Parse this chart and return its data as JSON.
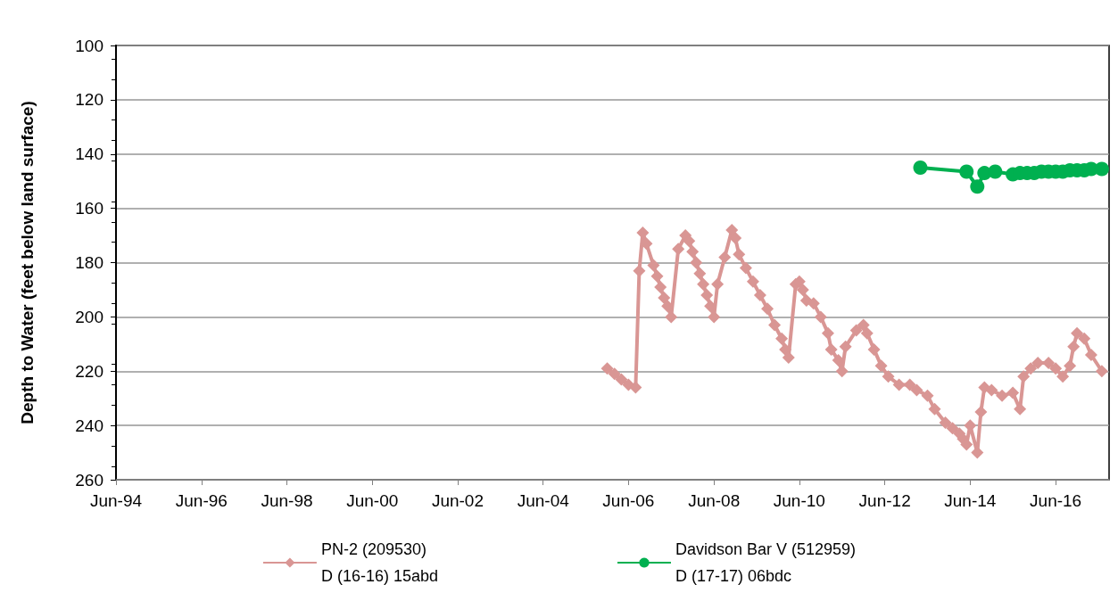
{
  "chart_data": {
    "type": "line",
    "ylabel": "Depth to Water (feet below land surface)",
    "xlim": [
      "1994-06-01",
      "2017-09-01"
    ],
    "xticks": [
      {
        "value": "1994-06-01",
        "label": "Jun-94"
      },
      {
        "value": "1996-06-01",
        "label": "Jun-96"
      },
      {
        "value": "1998-06-01",
        "label": "Jun-98"
      },
      {
        "value": "2000-06-01",
        "label": "Jun-00"
      },
      {
        "value": "2002-06-01",
        "label": "Jun-02"
      },
      {
        "value": "2004-06-01",
        "label": "Jun-04"
      },
      {
        "value": "2006-06-01",
        "label": "Jun-06"
      },
      {
        "value": "2008-06-01",
        "label": "Jun-08"
      },
      {
        "value": "2010-06-01",
        "label": "Jun-10"
      },
      {
        "value": "2012-06-01",
        "label": "Jun-12"
      },
      {
        "value": "2014-06-01",
        "label": "Jun-14"
      },
      {
        "value": "2016-06-01",
        "label": "Jun-16"
      }
    ],
    "ylim": [
      260,
      100
    ],
    "yticks": [
      100,
      120,
      140,
      160,
      180,
      200,
      220,
      240,
      260
    ],
    "grid": "y",
    "legend": "bottom",
    "series": [
      {
        "name": "PN-2 (209530)\nD (16-16) 15abd",
        "color": "#d99694",
        "marker": "diamond",
        "x": [
          "2005-12",
          "2006-02",
          "2006-04",
          "2006-06",
          "2006-08",
          "2006-09",
          "2006-10",
          "2006-11",
          "2007-01",
          "2007-02",
          "2007-03",
          "2007-04",
          "2007-05",
          "2007-06",
          "2007-08",
          "2007-10",
          "2007-11",
          "2007-12",
          "2008-01",
          "2008-02",
          "2008-03",
          "2008-04",
          "2008-05",
          "2008-06",
          "2008-07",
          "2008-09",
          "2008-11",
          "2008-12",
          "2009-01",
          "2009-03",
          "2009-05",
          "2009-07",
          "2009-09",
          "2009-11",
          "2010-01",
          "2010-02",
          "2010-03",
          "2010-05",
          "2010-06",
          "2010-07",
          "2010-08",
          "2010-10",
          "2010-12",
          "2011-02",
          "2011-03",
          "2011-05",
          "2011-06",
          "2011-07",
          "2011-10",
          "2011-12",
          "2012-01",
          "2012-03",
          "2012-05",
          "2012-07",
          "2012-10",
          "2013-01",
          "2013-03",
          "2013-06",
          "2013-08",
          "2013-11",
          "2014-01",
          "2014-03",
          "2014-04",
          "2014-05",
          "2014-06",
          "2014-08",
          "2014-09",
          "2014-10",
          "2014-12",
          "2015-03",
          "2015-06",
          "2015-08",
          "2015-09",
          "2015-11",
          "2016-01",
          "2016-04",
          "2016-06",
          "2016-08",
          "2016-10",
          "2016-11",
          "2016-12",
          "2017-02",
          "2017-04",
          "2017-07"
        ],
        "values": [
          219,
          221,
          223,
          225,
          226,
          183,
          169,
          173,
          181,
          185,
          189,
          193,
          196,
          200,
          175,
          170,
          172,
          176,
          180,
          184,
          188,
          192,
          196,
          200,
          188,
          178,
          168,
          171,
          177,
          182,
          187,
          192,
          197,
          203,
          208,
          212,
          215,
          188,
          187,
          190,
          194,
          195,
          200,
          206,
          212,
          216,
          220,
          211,
          205,
          203,
          206,
          212,
          218,
          222,
          225,
          225,
          227,
          229,
          234,
          239,
          241,
          243,
          245,
          247,
          240,
          250,
          235,
          226,
          227,
          229,
          228,
          234,
          222,
          219,
          217,
          217,
          219,
          222,
          218,
          211,
          206,
          208,
          214,
          220
        ]
      },
      {
        "name": "Davidson Bar V (512959)\nD (17-17) 06bdc",
        "color": "#00b050",
        "marker": "circle",
        "x": [
          "2013-04",
          "2014-05",
          "2014-08",
          "2014-10",
          "2015-01",
          "2015-06",
          "2015-08",
          "2015-10",
          "2015-12",
          "2016-02",
          "2016-04",
          "2016-06",
          "2016-08",
          "2016-10",
          "2016-12",
          "2017-02",
          "2017-04",
          "2017-07"
        ],
        "values": [
          145,
          146.5,
          152,
          147,
          146.5,
          147.5,
          147,
          147,
          147,
          146.5,
          146.5,
          146.5,
          146.5,
          146,
          146,
          146,
          145.5,
          145.5
        ]
      }
    ]
  }
}
